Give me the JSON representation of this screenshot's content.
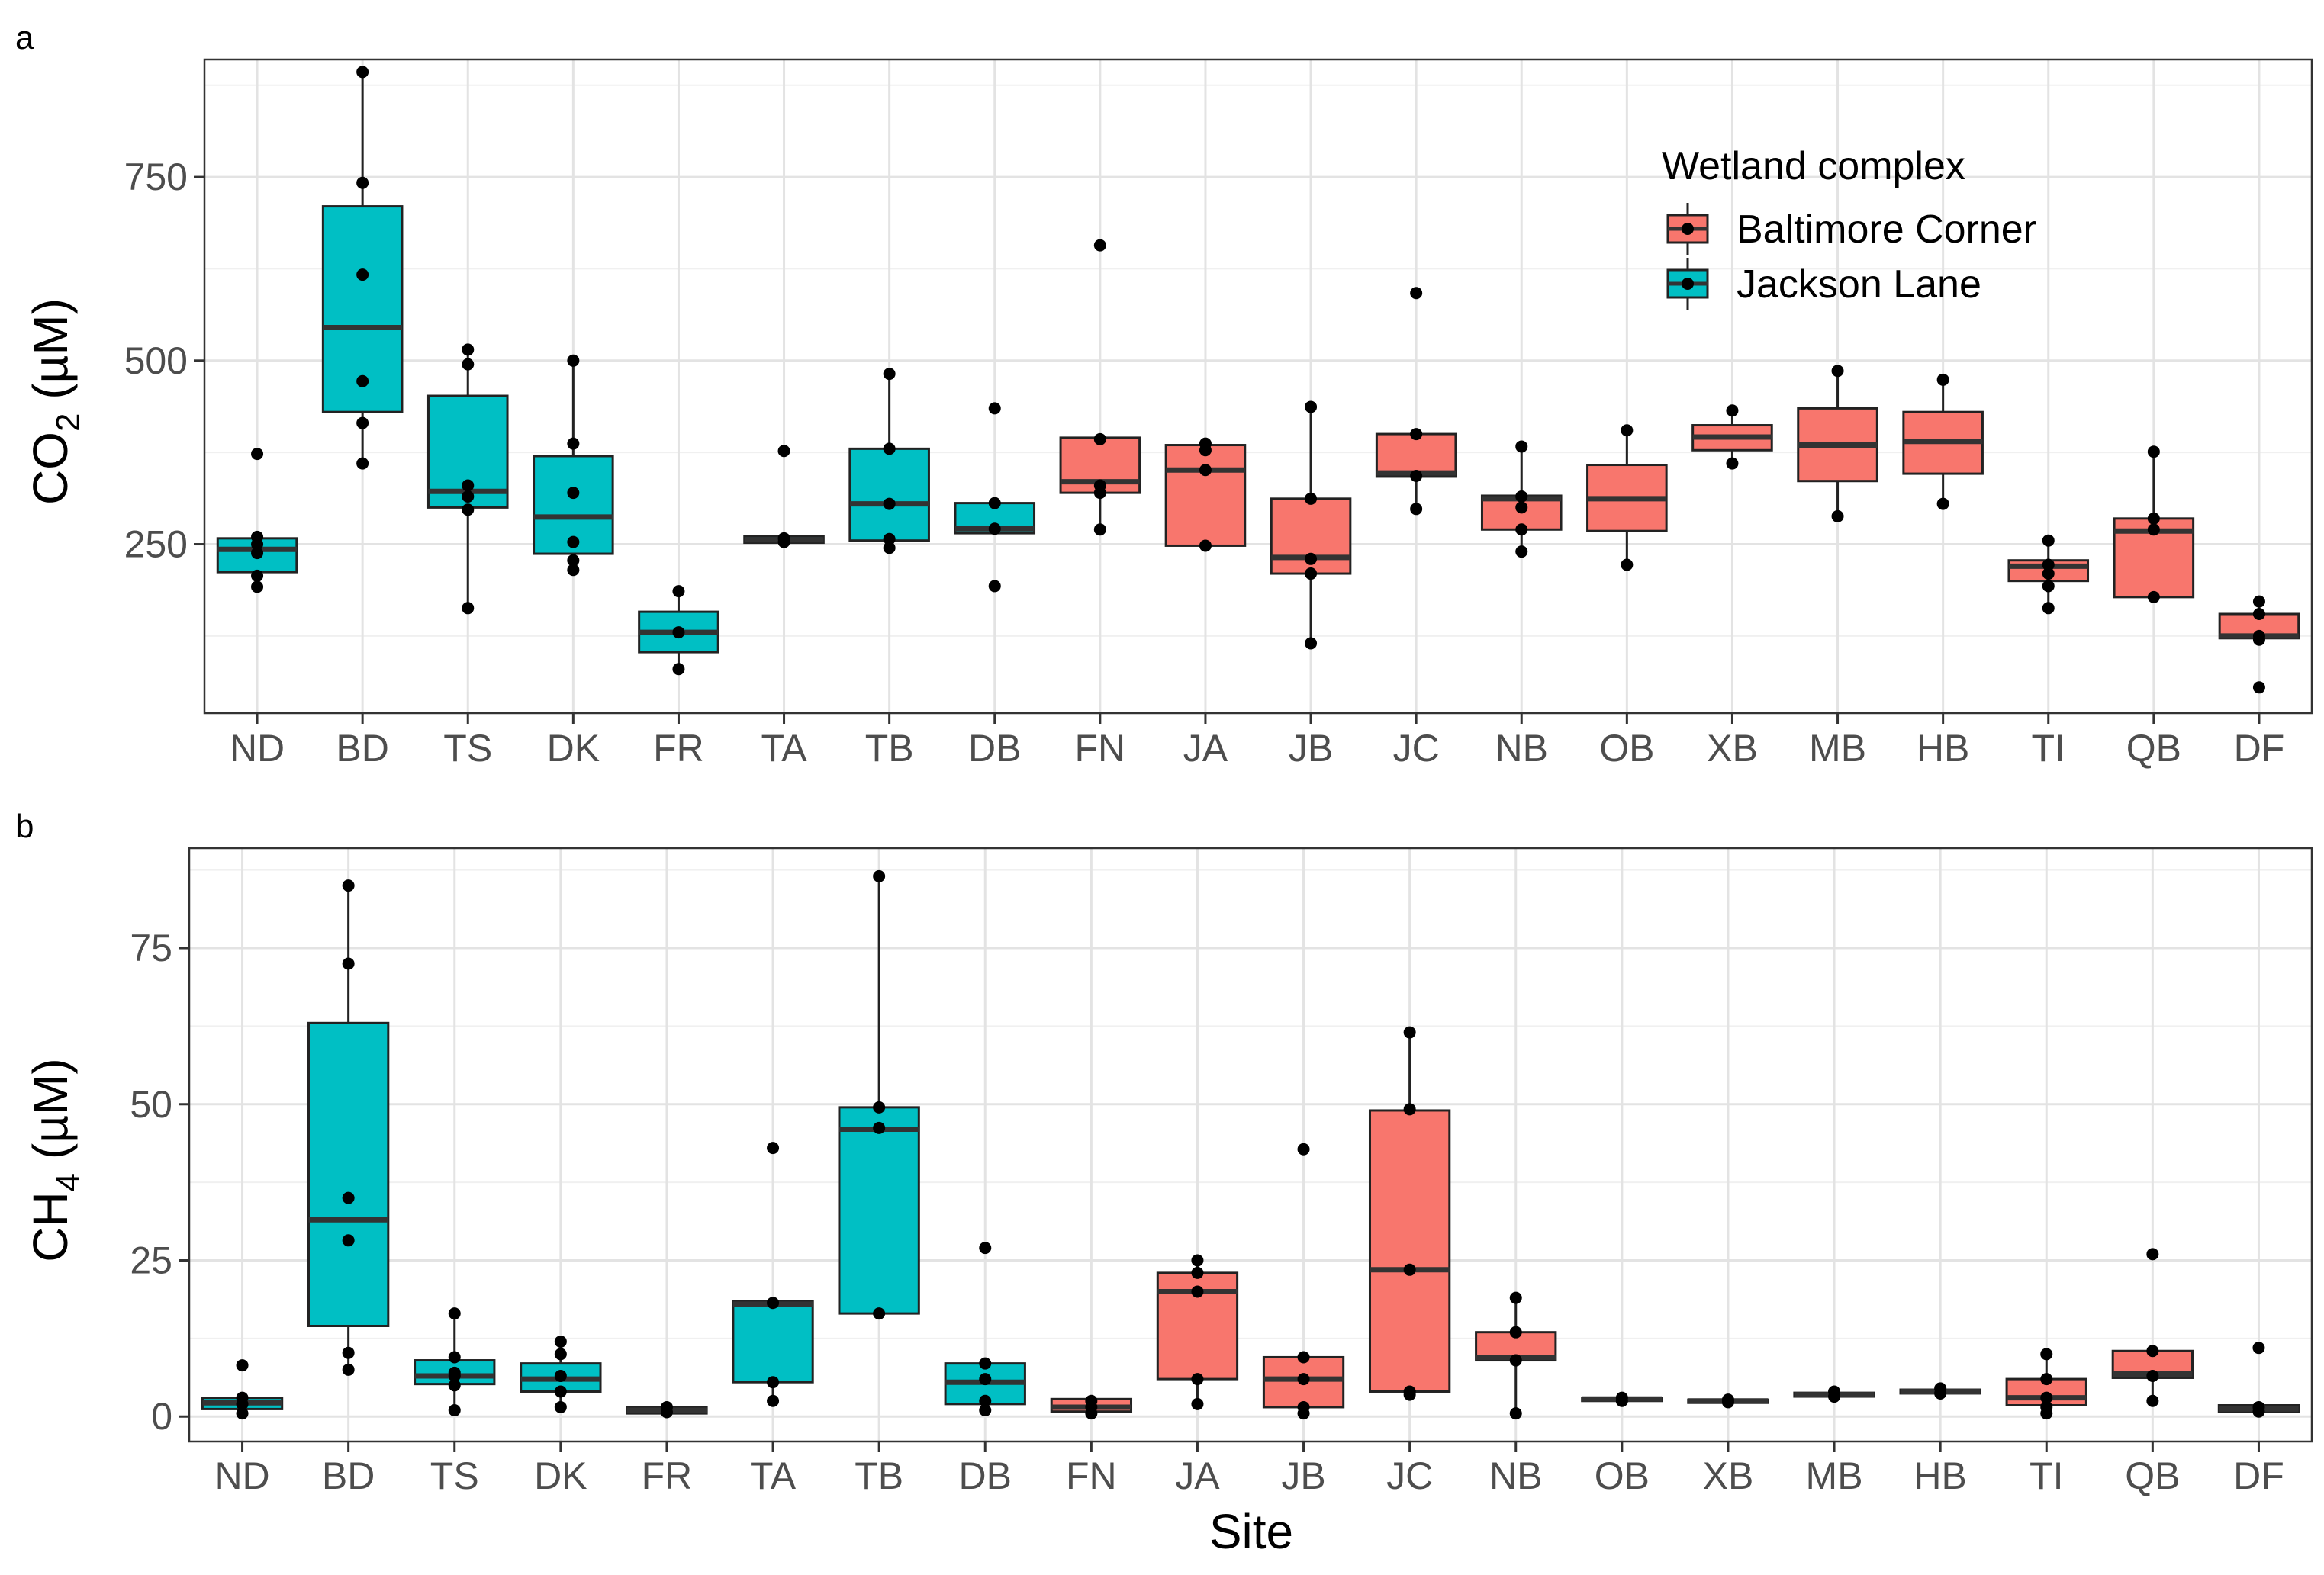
{
  "legend": {
    "title": "Wetland complex",
    "entries": [
      {
        "name": "Baltimore Corner",
        "color": "#F8766D"
      },
      {
        "name": "Jackson Lane",
        "color": "#00BFC4"
      }
    ]
  },
  "xlabel": "Site",
  "chart_data": [
    {
      "type": "box",
      "panel": "a",
      "ylabel_main": "CO",
      "ylabel_sub": "2",
      "ylabel_rest": " (µM)",
      "ylim": [
        20,
        910
      ],
      "yticks": [
        250,
        500,
        750
      ],
      "grid": true,
      "legend_position": "top-right",
      "categories": [
        "ND",
        "BD",
        "TS",
        "DK",
        "FR",
        "TA",
        "TB",
        "DB",
        "FN",
        "JA",
        "JB",
        "JC",
        "NB",
        "OB",
        "XB",
        "MB",
        "HB",
        "TI",
        "QB",
        "DF"
      ],
      "boxes": [
        {
          "site": "ND",
          "group": "Jackson Lane",
          "q1": 212,
          "median": 243,
          "q3": 258,
          "wlow": 192,
          "whigh": 258,
          "points": [
            373,
            260,
            250,
            238,
            207,
            192
          ]
        },
        {
          "site": "BD",
          "group": "Jackson Lane",
          "q1": 430,
          "median": 545,
          "q3": 710,
          "wlow": 360,
          "whigh": 893,
          "points": [
            893,
            742,
            617,
            472,
            415,
            360
          ]
        },
        {
          "site": "TS",
          "group": "Jackson Lane",
          "q1": 300,
          "median": 322,
          "q3": 452,
          "wlow": 163,
          "whigh": 515,
          "points": [
            515,
            495,
            330,
            315,
            297,
            163
          ]
        },
        {
          "site": "DK",
          "group": "Jackson Lane",
          "q1": 237,
          "median": 287,
          "q3": 370,
          "wlow": 213,
          "whigh": 500,
          "points": [
            500,
            387,
            320,
            253,
            228,
            215
          ]
        },
        {
          "site": "FR",
          "group": "Jackson Lane",
          "q1": 103,
          "median": 130,
          "q3": 158,
          "wlow": 80,
          "whigh": 186,
          "points": [
            186,
            130,
            80
          ]
        },
        {
          "site": "TA",
          "group": "Jackson Lane",
          "q1": 252,
          "median": 256,
          "q3": 261,
          "wlow": 252,
          "whigh": 261,
          "points": [
            377,
            258,
            253
          ]
        },
        {
          "site": "TB",
          "group": "Jackson Lane",
          "q1": 255,
          "median": 305,
          "q3": 380,
          "wlow": 245,
          "whigh": 482,
          "points": [
            482,
            380,
            305,
            257,
            245
          ]
        },
        {
          "site": "DB",
          "group": "Jackson Lane",
          "q1": 265,
          "median": 271,
          "q3": 306,
          "wlow": 265,
          "whigh": 306,
          "points": [
            435,
            306,
            271,
            193
          ]
        },
        {
          "site": "FN",
          "group": "Baltimore Corner",
          "q1": 320,
          "median": 335,
          "q3": 395,
          "wlow": 270,
          "whigh": 395,
          "points": [
            657,
            393,
            330,
            320,
            270
          ]
        },
        {
          "site": "JA",
          "group": "Baltimore Corner",
          "q1": 248,
          "median": 351,
          "q3": 385,
          "wlow": 248,
          "whigh": 387,
          "points": [
            387,
            378,
            351,
            248
          ]
        },
        {
          "site": "JB",
          "group": "Baltimore Corner",
          "q1": 210,
          "median": 232,
          "q3": 312,
          "wlow": 115,
          "whigh": 437,
          "points": [
            437,
            312,
            230,
            210,
            115
          ]
        },
        {
          "site": "JC",
          "group": "Baltimore Corner",
          "q1": 342,
          "median": 347,
          "q3": 400,
          "wlow": 298,
          "whigh": 400,
          "points": [
            592,
            400,
            343,
            298
          ]
        },
        {
          "site": "NB",
          "group": "Baltimore Corner",
          "q1": 270,
          "median": 312,
          "q3": 316,
          "wlow": 240,
          "whigh": 383,
          "points": [
            383,
            315,
            300,
            270,
            240
          ]
        },
        {
          "site": "OB",
          "group": "Baltimore Corner",
          "q1": 268,
          "median": 312,
          "q3": 358,
          "wlow": 222,
          "whigh": 405,
          "points": [
            405,
            222
          ]
        },
        {
          "site": "XB",
          "group": "Baltimore Corner",
          "q1": 378,
          "median": 396,
          "q3": 412,
          "wlow": 360,
          "whigh": 432,
          "points": [
            432,
            360
          ]
        },
        {
          "site": "MB",
          "group": "Baltimore Corner",
          "q1": 336,
          "median": 385,
          "q3": 435,
          "wlow": 288,
          "whigh": 486,
          "points": [
            486,
            288
          ]
        },
        {
          "site": "HB",
          "group": "Baltimore Corner",
          "q1": 346,
          "median": 390,
          "q3": 430,
          "wlow": 305,
          "whigh": 474,
          "points": [
            474,
            305
          ]
        },
        {
          "site": "TI",
          "group": "Baltimore Corner",
          "q1": 200,
          "median": 220,
          "q3": 228,
          "wlow": 163,
          "whigh": 255,
          "points": [
            255,
            222,
            210,
            193,
            163
          ]
        },
        {
          "site": "QB",
          "group": "Baltimore Corner",
          "q1": 178,
          "median": 268,
          "q3": 285,
          "wlow": 178,
          "whigh": 376,
          "points": [
            376,
            285,
            270,
            178
          ]
        },
        {
          "site": "DF",
          "group": "Baltimore Corner",
          "q1": 122,
          "median": 125,
          "q3": 155,
          "wlow": 122,
          "whigh": 172,
          "points": [
            172,
            155,
            125,
            120,
            55
          ]
        }
      ]
    },
    {
      "type": "box",
      "panel": "b",
      "ylabel_main": "CH",
      "ylabel_sub": "4",
      "ylabel_rest": " (µM)",
      "ylim": [
        -4,
        91
      ],
      "yticks": [
        0,
        25,
        50,
        75
      ],
      "grid": true,
      "categories": [
        "ND",
        "BD",
        "TS",
        "DK",
        "FR",
        "TA",
        "TB",
        "DB",
        "FN",
        "JA",
        "JB",
        "JC",
        "NB",
        "OB",
        "XB",
        "MB",
        "HB",
        "TI",
        "QB",
        "DF"
      ],
      "boxes": [
        {
          "site": "ND",
          "group": "Jackson Lane",
          "q1": 1.2,
          "median": 2.2,
          "q3": 3.0,
          "wlow": 0.3,
          "whigh": 3.0,
          "points": [
            8.2,
            3.0,
            2.0,
            0.5
          ]
        },
        {
          "site": "BD",
          "group": "Jackson Lane",
          "q1": 14.5,
          "median": 31.5,
          "q3": 63.0,
          "wlow": 7.5,
          "whigh": 85.0,
          "points": [
            85.0,
            72.5,
            35.0,
            28.2,
            10.2,
            7.5
          ]
        },
        {
          "site": "TS",
          "group": "Jackson Lane",
          "q1": 5.2,
          "median": 6.5,
          "q3": 9.0,
          "wlow": 1.0,
          "whigh": 16.5,
          "points": [
            16.5,
            9.5,
            7.0,
            6.5,
            5.0,
            1.0
          ]
        },
        {
          "site": "DK",
          "group": "Jackson Lane",
          "q1": 4.0,
          "median": 6.0,
          "q3": 8.5,
          "wlow": 1.5,
          "whigh": 12.0,
          "points": [
            12.0,
            10.0,
            6.5,
            4.0,
            1.5
          ]
        },
        {
          "site": "FR",
          "group": "Jackson Lane",
          "q1": 0.5,
          "median": 1.0,
          "q3": 1.5,
          "wlow": 0.5,
          "whigh": 1.5,
          "points": [
            1.5,
            0.7
          ]
        },
        {
          "site": "TA",
          "group": "Jackson Lane",
          "q1": 5.5,
          "median": 18.0,
          "q3": 18.5,
          "wlow": 2.5,
          "whigh": 18.5,
          "points": [
            43.0,
            18.2,
            5.5,
            2.5
          ]
        },
        {
          "site": "TB",
          "group": "Jackson Lane",
          "q1": 16.5,
          "median": 46.0,
          "q3": 49.5,
          "wlow": 16.5,
          "whigh": 86.5,
          "points": [
            86.5,
            49.5,
            46.2,
            16.5
          ]
        },
        {
          "site": "DB",
          "group": "Jackson Lane",
          "q1": 2.0,
          "median": 5.5,
          "q3": 8.5,
          "wlow": 1.0,
          "whigh": 8.5,
          "points": [
            27.0,
            8.5,
            6.0,
            2.5,
            1.0
          ]
        },
        {
          "site": "FN",
          "group": "Baltimore Corner",
          "q1": 0.8,
          "median": 1.5,
          "q3": 2.8,
          "wlow": 0.5,
          "whigh": 2.8,
          "points": [
            2.5,
            1.5,
            0.5
          ]
        },
        {
          "site": "JA",
          "group": "Baltimore Corner",
          "q1": 6.0,
          "median": 20.0,
          "q3": 23.0,
          "wlow": 2.0,
          "whigh": 25.0,
          "points": [
            25.0,
            23.0,
            20.0,
            6.0,
            2.0
          ]
        },
        {
          "site": "JB",
          "group": "Baltimore Corner",
          "q1": 1.5,
          "median": 6.0,
          "q3": 9.5,
          "wlow": 0.5,
          "whigh": 9.5,
          "points": [
            42.8,
            9.5,
            6.0,
            1.5,
            0.5
          ]
        },
        {
          "site": "JC",
          "group": "Baltimore Corner",
          "q1": 4.0,
          "median": 23.5,
          "q3": 49.0,
          "wlow": 3.5,
          "whigh": 61.5,
          "points": [
            61.5,
            49.2,
            23.5,
            4.0,
            3.5
          ]
        },
        {
          "site": "NB",
          "group": "Baltimore Corner",
          "q1": 9.0,
          "median": 9.5,
          "q3": 13.5,
          "wlow": 1.0,
          "whigh": 19.0,
          "points": [
            19.0,
            13.5,
            9.0,
            0.5
          ]
        },
        {
          "site": "OB",
          "group": "Baltimore Corner",
          "q1": 2.5,
          "median": 2.8,
          "q3": 3.0,
          "wlow": 2.5,
          "whigh": 3.0,
          "points": [
            3.0,
            2.5
          ]
        },
        {
          "site": "XB",
          "group": "Baltimore Corner",
          "q1": 2.2,
          "median": 2.5,
          "q3": 2.7,
          "wlow": 2.2,
          "whigh": 2.7,
          "points": [
            2.7,
            2.3
          ]
        },
        {
          "site": "MB",
          "group": "Baltimore Corner",
          "q1": 3.2,
          "median": 3.5,
          "q3": 3.8,
          "wlow": 3.2,
          "whigh": 3.8,
          "points": [
            4.0,
            3.2
          ]
        },
        {
          "site": "HB",
          "group": "Baltimore Corner",
          "q1": 3.7,
          "median": 4.0,
          "q3": 4.3,
          "wlow": 3.7,
          "whigh": 4.3,
          "points": [
            4.5,
            3.7
          ]
        },
        {
          "site": "TI",
          "group": "Baltimore Corner",
          "q1": 1.8,
          "median": 3.0,
          "q3": 6.0,
          "wlow": 0.5,
          "whigh": 10.0,
          "points": [
            10.0,
            6.0,
            3.0,
            1.5,
            0.5
          ]
        },
        {
          "site": "QB",
          "group": "Baltimore Corner",
          "q1": 6.2,
          "median": 6.8,
          "q3": 10.5,
          "wlow": 2.5,
          "whigh": 10.5,
          "points": [
            26.0,
            10.5,
            6.5,
            2.5
          ]
        },
        {
          "site": "DF",
          "group": "Baltimore Corner",
          "q1": 0.8,
          "median": 1.2,
          "q3": 1.8,
          "wlow": 0.5,
          "whigh": 1.8,
          "points": [
            11.0,
            1.5,
            0.8
          ]
        }
      ]
    }
  ]
}
